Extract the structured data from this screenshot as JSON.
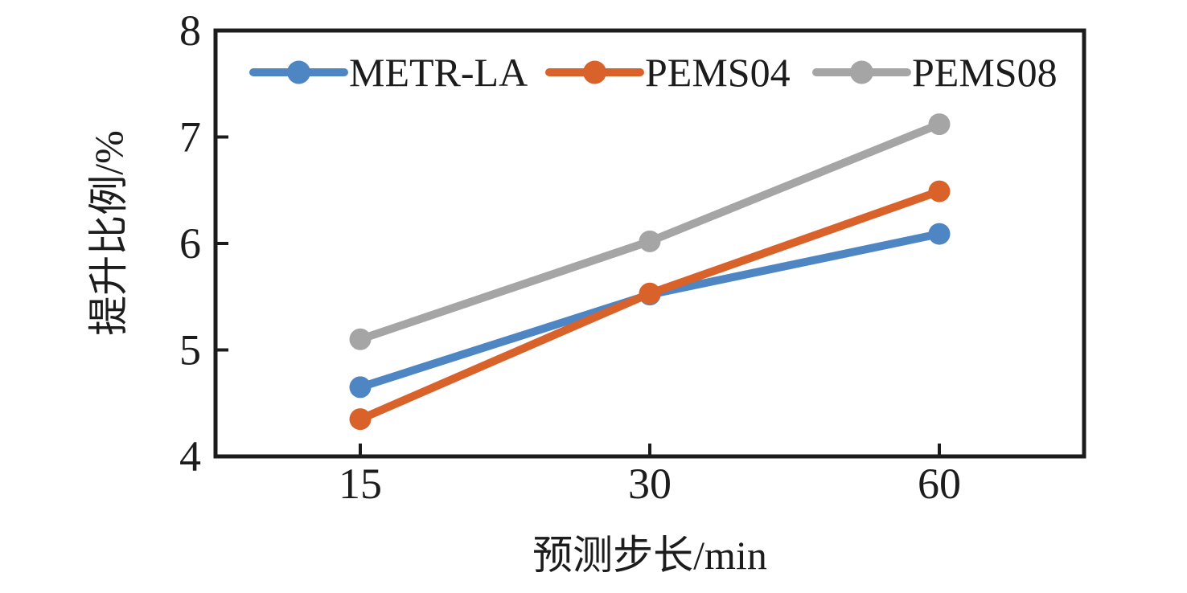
{
  "chart_data": {
    "type": "line",
    "categories": [
      "15",
      "30",
      "60"
    ],
    "series": [
      {
        "name": "METR-LA",
        "color": "#4e85c3",
        "values": [
          4.65,
          5.52,
          6.09
        ]
      },
      {
        "name": "PEMS04",
        "color": "#d9622b",
        "values": [
          4.35,
          5.53,
          6.49
        ]
      },
      {
        "name": "PEMS08",
        "color": "#a5a5a5",
        "values": [
          5.1,
          6.02,
          7.12
        ]
      }
    ],
    "title": "",
    "xlabel": "预测步长/min",
    "ylabel": "提升比例/%",
    "ylim": [
      4,
      8
    ],
    "yticks": [
      4,
      5,
      6,
      7,
      8
    ],
    "xticks": [
      "15",
      "30",
      "60"
    ],
    "grid": false,
    "legend_position": "top-inside",
    "legend": [
      "METR-LA",
      "PEMS04",
      "PEMS08"
    ],
    "axis_color": "#1c1c1c",
    "background_color": "#ffffff"
  }
}
